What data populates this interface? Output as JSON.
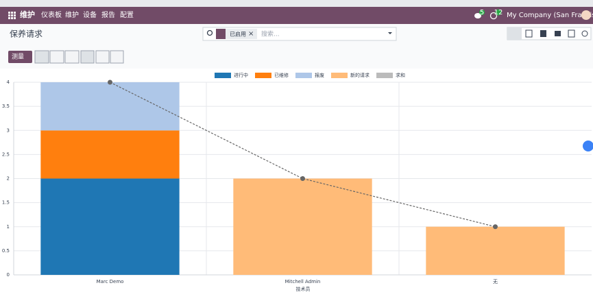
{
  "nav": {
    "app": "维护",
    "menu": [
      "仪表板",
      "维护",
      "设备",
      "报告",
      "配置"
    ],
    "chat_badge": "5",
    "activity_badge": "12",
    "company": "My Company (San Francisco)"
  },
  "control": {
    "breadcrumb": "保养请求",
    "facet": "已启用",
    "search_placeholder": "搜索...",
    "measure": "测量"
  },
  "chart_data": {
    "type": "bar",
    "stacked": true,
    "grid": true,
    "x_label": "技术员",
    "categories": [
      "Marc Demo",
      "Mitchell Admin",
      "无"
    ],
    "series": [
      {
        "name": "进行中",
        "color": "#1f77b4",
        "values": [
          2,
          0,
          0
        ]
      },
      {
        "name": "已维修",
        "color": "#ff7f0e",
        "values": [
          1,
          0,
          0
        ]
      },
      {
        "name": "报废",
        "color": "#aec7e8",
        "values": [
          1,
          0,
          0
        ]
      },
      {
        "name": "新的请求",
        "color": "#ffbb78",
        "values": [
          0,
          2,
          1
        ]
      },
      {
        "name": "求和",
        "type": "line",
        "color": "#666666",
        "values": [
          4,
          2,
          1
        ]
      }
    ],
    "ylim": [
      0,
      4
    ],
    "yticks": [
      0,
      0.5,
      1,
      1.5,
      2,
      2.5,
      3,
      3.5,
      4
    ]
  }
}
